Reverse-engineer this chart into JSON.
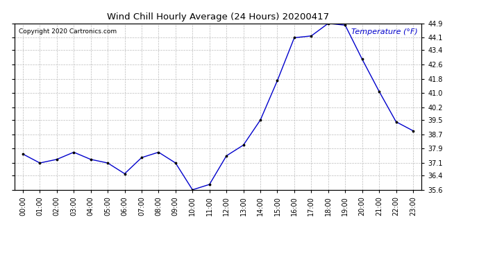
{
  "title": "Wind Chill Hourly Average (24 Hours) 20200417",
  "copyright": "Copyright 2020 Cartronics.com",
  "legend_label": "Temperature (°F)",
  "hours": [
    0,
    1,
    2,
    3,
    4,
    5,
    6,
    7,
    8,
    9,
    10,
    11,
    12,
    13,
    14,
    15,
    16,
    17,
    18,
    19,
    20,
    21,
    22,
    23
  ],
  "values": [
    37.6,
    37.1,
    37.3,
    37.7,
    37.3,
    37.1,
    36.5,
    37.4,
    37.7,
    37.1,
    35.6,
    35.9,
    37.5,
    38.1,
    39.5,
    41.7,
    44.1,
    44.2,
    44.9,
    44.8,
    42.9,
    41.1,
    39.4,
    38.9
  ],
  "ylim_min": 35.6,
  "ylim_max": 44.9,
  "yticks": [
    35.6,
    36.4,
    37.1,
    37.9,
    38.7,
    39.5,
    40.2,
    41.0,
    41.8,
    42.6,
    43.4,
    44.1,
    44.9
  ],
  "line_color": "#0000cc",
  "marker_color": "#000000",
  "background_color": "#ffffff",
  "grid_color": "#bbbbbb",
  "title_color": "#000000",
  "copyright_color": "#000000",
  "legend_color": "#0000cc",
  "title_fontsize": 9.5,
  "tick_fontsize": 7,
  "legend_fontsize": 8,
  "copyright_fontsize": 6.5
}
